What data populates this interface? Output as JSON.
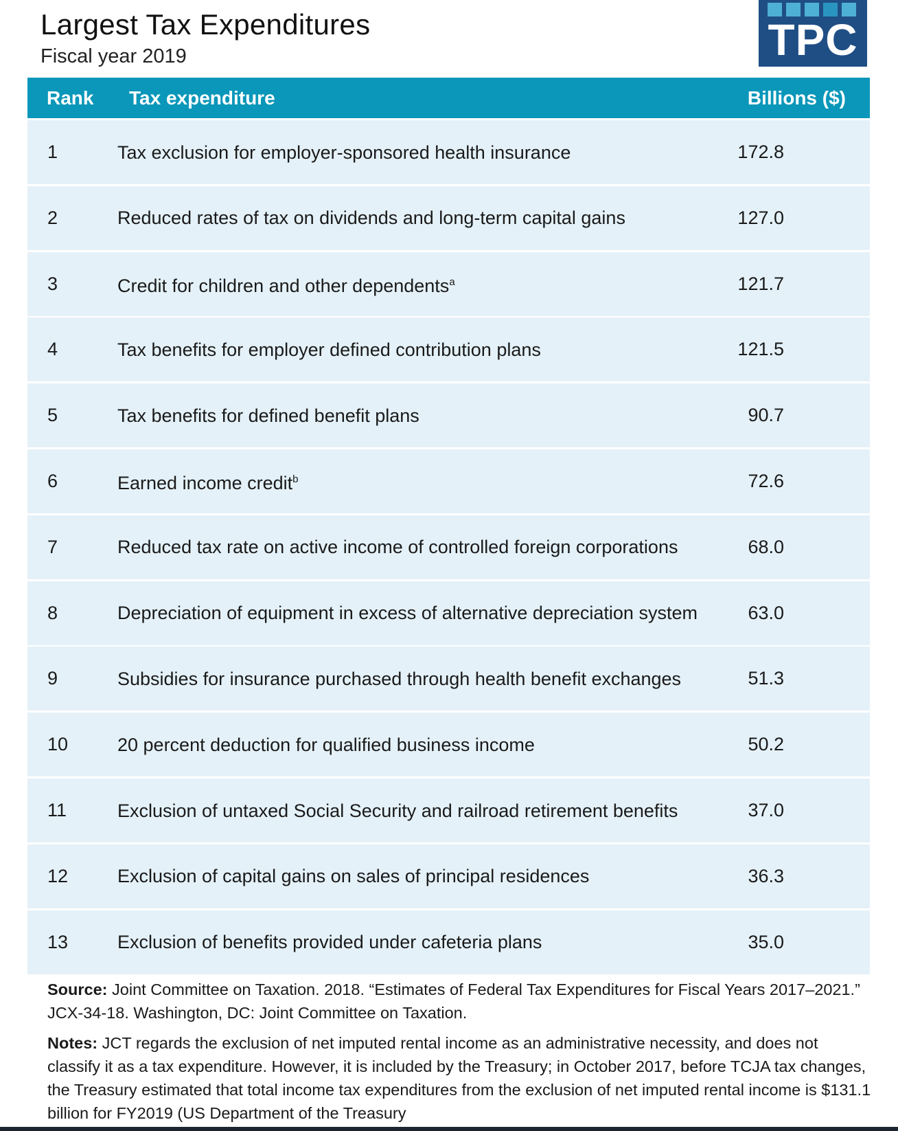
{
  "header": {
    "title": "Largest Tax Expenditures",
    "subtitle": "Fiscal year 2019",
    "logo_text": "TPC"
  },
  "colors": {
    "header_bar": "#0a97b9",
    "row_bg": "#e4f1f8",
    "logo_bg": "#1f4e85",
    "logo_squares": "#4fb0d5"
  },
  "table": {
    "columns": {
      "rank": "Rank",
      "expenditure": "Tax expenditure",
      "value": "Billions ($)"
    },
    "rows": [
      {
        "rank": "1",
        "desc": "Tax exclusion for employer-sponsored health insurance",
        "sup": "",
        "value": "172.8"
      },
      {
        "rank": "2",
        "desc": "Reduced rates of tax on dividends and long-term capital gains",
        "sup": "",
        "value": "127.0"
      },
      {
        "rank": "3",
        "desc": "Credit for children and other dependents",
        "sup": "a",
        "value": "121.7"
      },
      {
        "rank": "4",
        "desc": "Tax benefits for employer defined contribution plans",
        "sup": "",
        "value": "121.5"
      },
      {
        "rank": "5",
        "desc": "Tax benefits for defined benefit plans",
        "sup": "",
        "value": "90.7"
      },
      {
        "rank": "6",
        "desc": "Earned income credit",
        "sup": "b",
        "value": "72.6"
      },
      {
        "rank": "7",
        "desc": "Reduced tax rate on active income of controlled foreign corporations",
        "sup": "",
        "value": "68.0"
      },
      {
        "rank": "8",
        "desc": "Depreciation of equipment in excess of alternative depreciation system",
        "sup": "",
        "value": "63.0"
      },
      {
        "rank": "9",
        "desc": "Subsidies for insurance purchased through health benefit exchanges",
        "sup": "",
        "value": "51.3"
      },
      {
        "rank": "10",
        "desc": "20 percent deduction for qualified business income",
        "sup": "",
        "value": "50.2"
      },
      {
        "rank": "11",
        "desc": "Exclusion of untaxed Social Security and railroad retirement benefits",
        "sup": "",
        "value": "37.0"
      },
      {
        "rank": "12",
        "desc": "Exclusion of capital gains on sales of principal residences",
        "sup": "",
        "value": "36.3"
      },
      {
        "rank": "13",
        "desc": "Exclusion of benefits provided under cafeteria plans",
        "sup": "",
        "value": "35.0"
      }
    ]
  },
  "footer": {
    "source_label": "Source:",
    "source_text": " Joint Committee on Taxation. 2018. “Estimates of Federal Tax Expenditures for Fiscal Years 2017–2021.” JCX-34-18. Washington, DC: Joint Committee on Taxation.",
    "notes_label": "Notes:",
    "notes_text": " JCT regards the exclusion of net imputed rental income as an administrative necessity, and does not classify it as a tax expenditure. However, it is included by the Treasury; in October 2017, before TCJA tax changes, the Treasury estimated that total income tax expenditures from the exclusion of net imputed rental income is $131.1 billion for FY2019 (US Department of the Treasury"
  }
}
